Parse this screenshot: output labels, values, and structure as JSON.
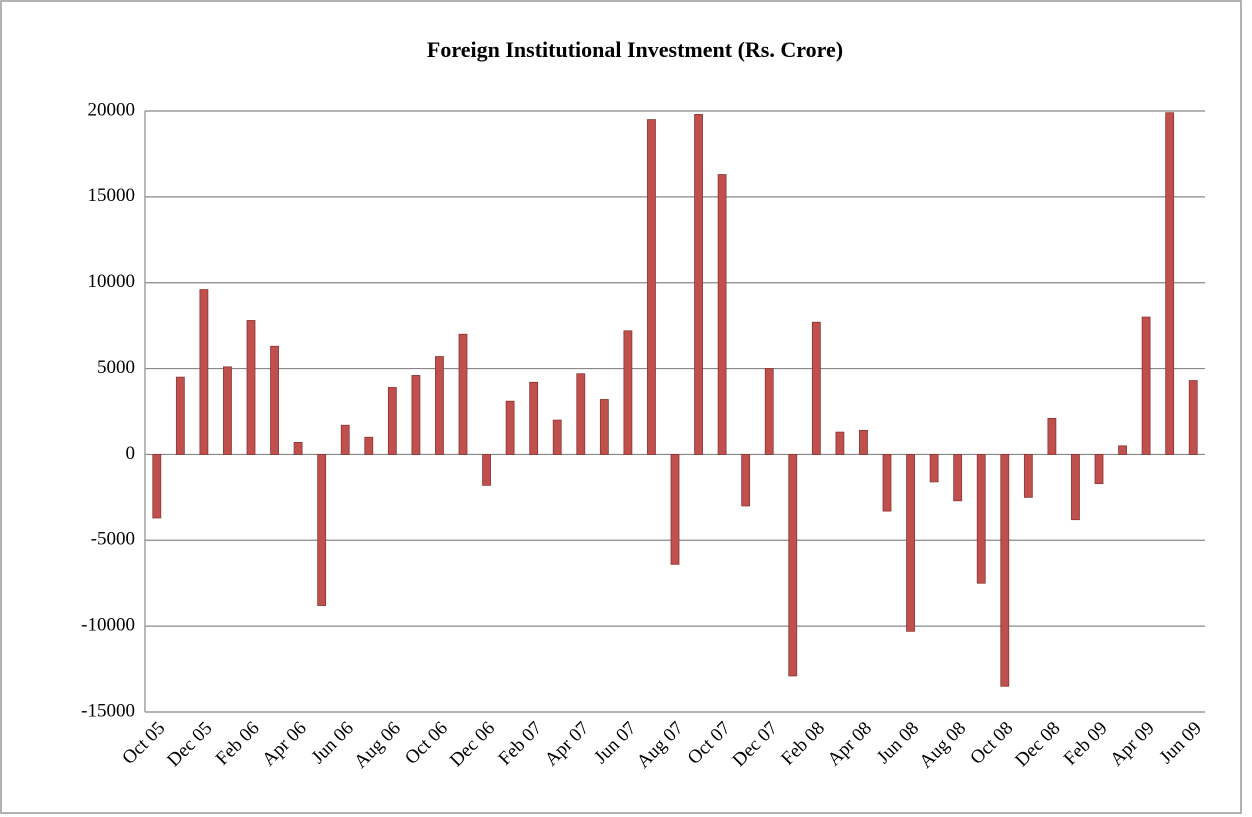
{
  "chart_data": {
    "type": "bar",
    "title": "Foreign Institutional Investment (Rs. Crore)",
    "categories": [
      "Oct 05",
      null,
      "Dec 05",
      null,
      "Feb 06",
      null,
      "Apr 06",
      null,
      "Jun 06",
      null,
      "Aug 06",
      null,
      "Oct 06",
      null,
      "Dec 06",
      null,
      "Feb 07",
      null,
      "Apr 07",
      null,
      "Jun 07",
      null,
      "Aug 07",
      null,
      "Oct 07",
      null,
      "Dec 07",
      null,
      "Feb 08",
      null,
      "Apr 08",
      null,
      "Jun 08",
      null,
      "Aug 08",
      null,
      "Oct 08",
      null,
      "Dec 08",
      null,
      "Feb 09",
      null,
      "Apr 09",
      null,
      "Jun 09"
    ],
    "values": [
      -3700,
      4500,
      9600,
      5100,
      7800,
      6300,
      700,
      -8800,
      1700,
      1000,
      3900,
      4600,
      5700,
      7000,
      -1800,
      3100,
      4200,
      2000,
      4700,
      3200,
      7200,
      19500,
      -6400,
      19800,
      16300,
      -3000,
      5000,
      -12900,
      7700,
      1300,
      1400,
      -3300,
      -10300,
      -1600,
      -2700,
      -7500,
      -13500,
      -2500,
      2100,
      -3800,
      -1700,
      500,
      8000,
      19900,
      4300
    ],
    "color": "#c0504d",
    "ylim": [
      -15000,
      20000
    ],
    "yticks": [
      -15000,
      -10000,
      -5000,
      0,
      5000,
      10000,
      15000,
      20000
    ],
    "grid": true
  }
}
